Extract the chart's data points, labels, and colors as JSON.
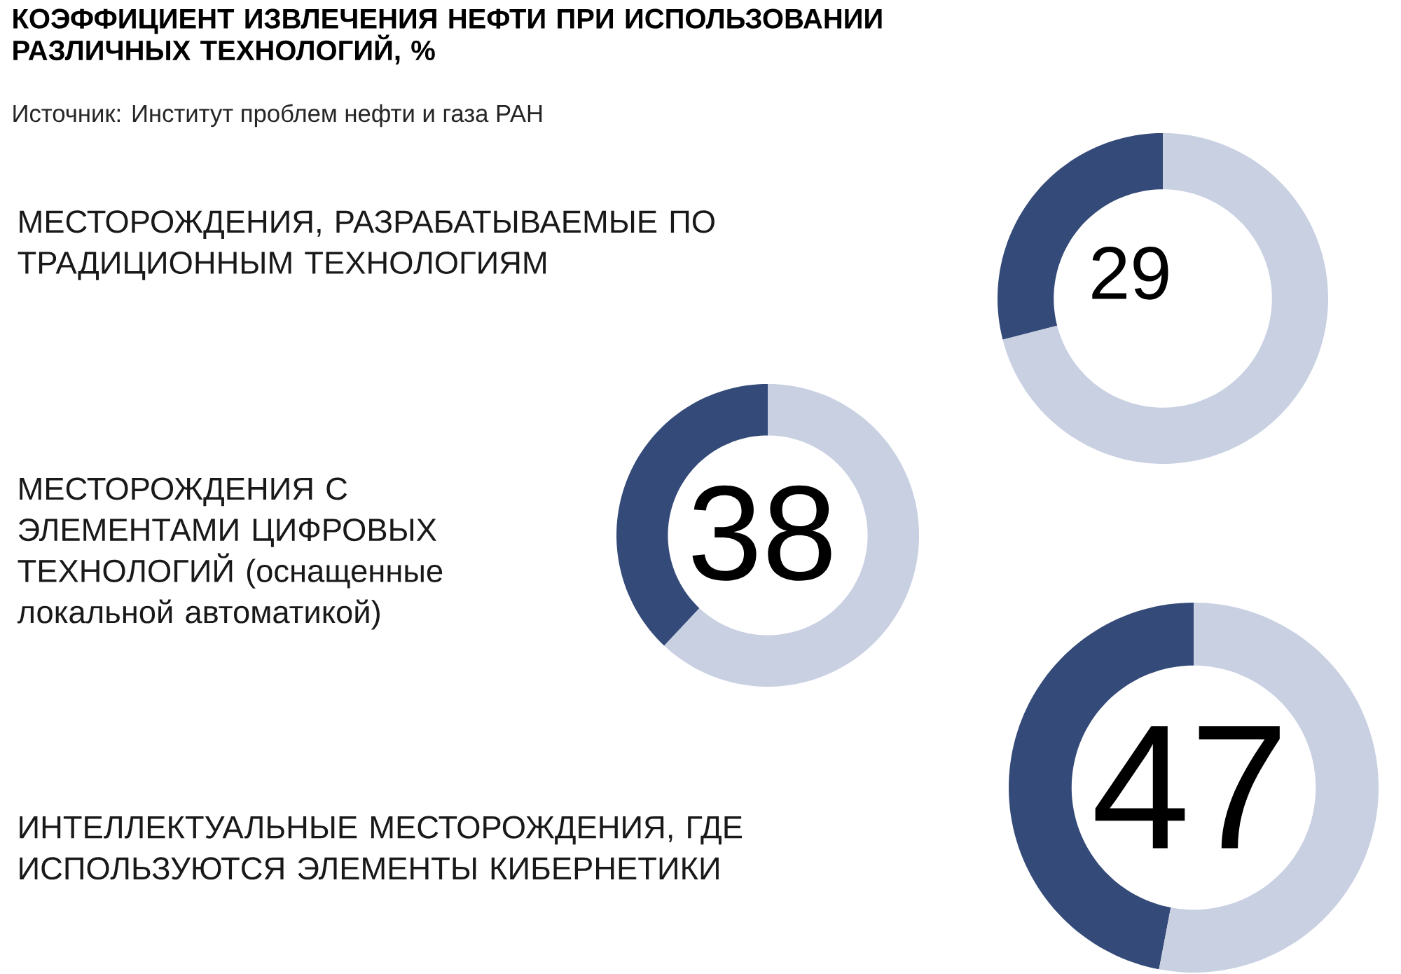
{
  "chart_data": [
    {
      "type": "other",
      "title": "КОЭФФИЦИЕНТ ИЗВЛЕЧЕНИЯ НЕФТИ ПРИ ИСПОЛЬЗОВАНИИ РАЗЛИЧНЫХ ТЕХНОЛОГИЙ, %",
      "annotations": [
        "Источник: Институт проблем нефти и газа РАН"
      ]
    },
    {
      "type": "donut",
      "title": "МЕСТОРОЖДЕНИЯ, РАЗРАБАТЫВАЕМЫЕ ПО ТРАДИЦИОННЫМ ТЕХНОЛОГИЯМ",
      "categories": [
        null,
        null
      ],
      "values": [
        29,
        71
      ],
      "colors": [
        "#344a78",
        "#c8d0e2"
      ],
      "value_labels": [
        "29",
        null
      ]
    },
    {
      "type": "donut",
      "title": "МЕСТОРОЖДЕНИЯ С ЭЛЕМЕНТАМИ ЦИФРОВЫХ ТЕХНОЛОГИЙ (оснащенные локальной автоматикой)",
      "categories": [
        null,
        null
      ],
      "values": [
        38,
        62
      ],
      "colors": [
        "#344a78",
        "#c8d0e2"
      ],
      "value_labels": [
        "38",
        null
      ]
    },
    {
      "type": "donut",
      "title": "ИНТЕЛЛЕКТУАЛЬНЫЕ МЕСТОРОЖДЕНИЯ, ГДЕ ИСПОЛЬЗУЮТСЯ ЭЛЕМЕНТЫ КИБЕРНЕТИКИ",
      "categories": [
        null,
        null
      ],
      "values": [
        47,
        53
      ],
      "colors": [
        "#344a78",
        "#c8d0e2"
      ],
      "value_labels": [
        "47",
        null
      ]
    }
  ]
}
